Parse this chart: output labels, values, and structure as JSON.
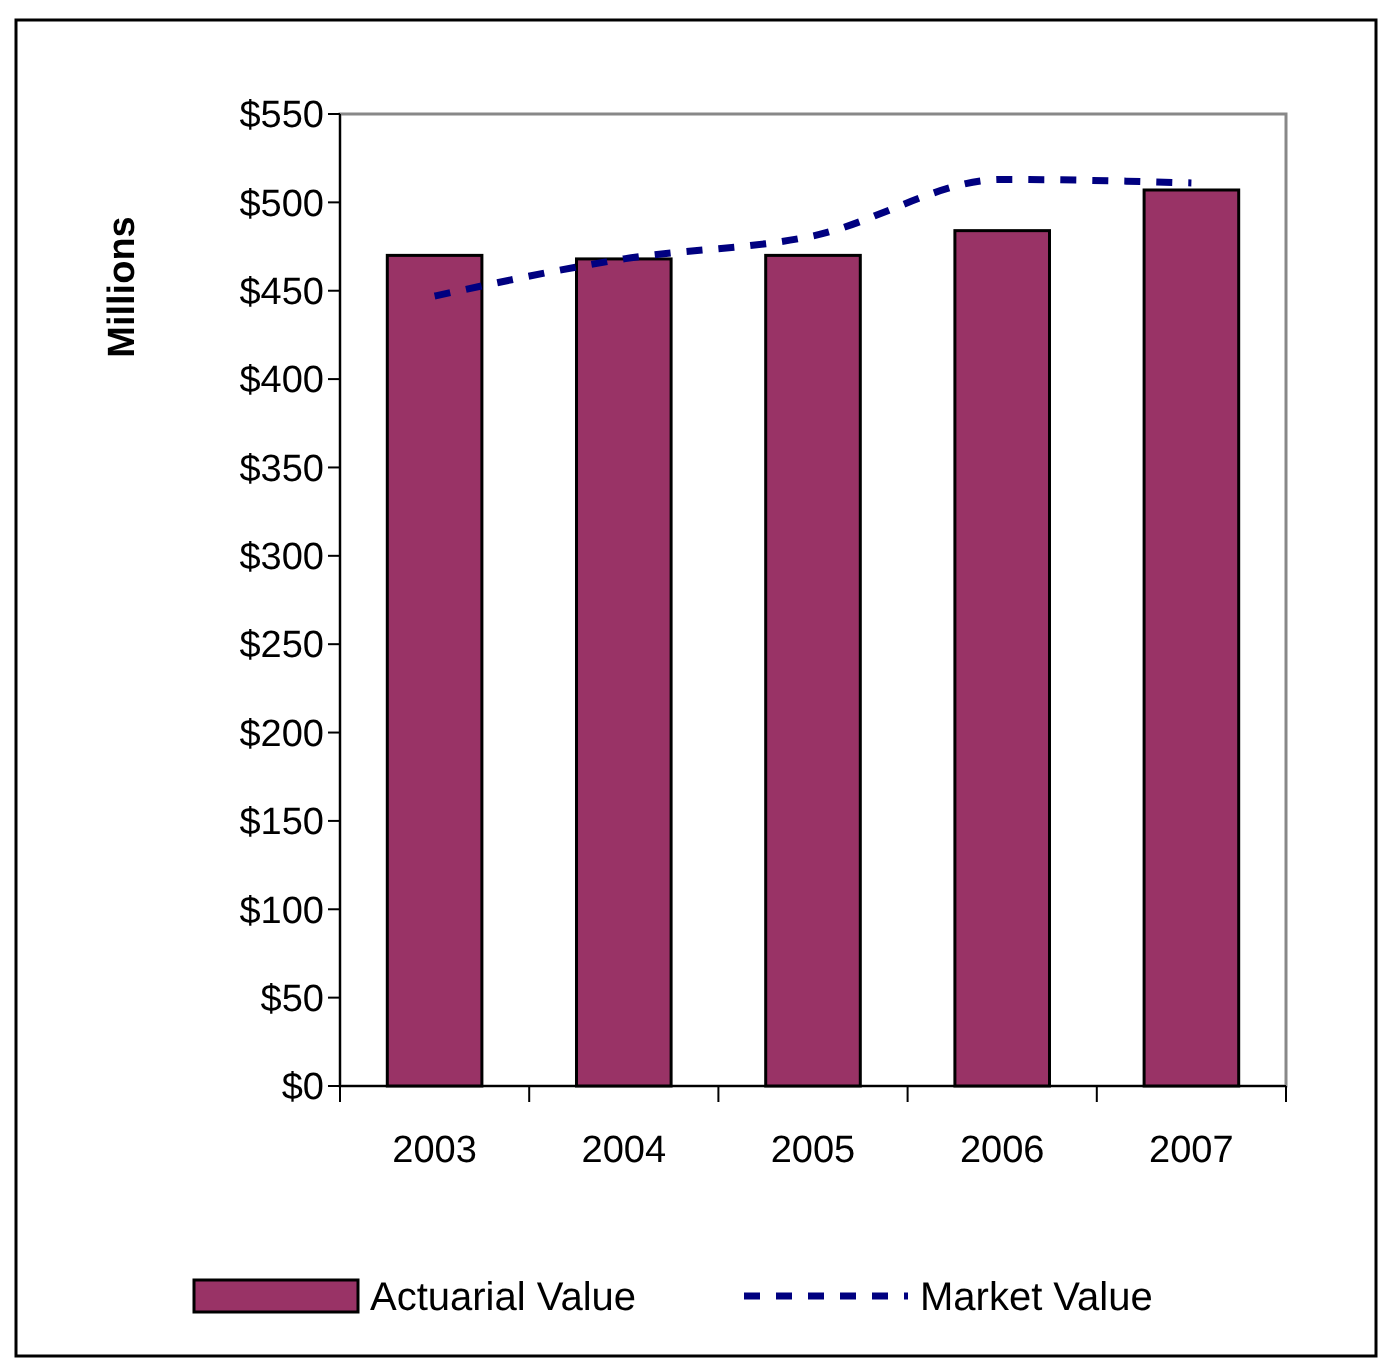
{
  "chart_data": {
    "type": "bar",
    "ylabel": "Millions",
    "categories": [
      "2003",
      "2004",
      "2005",
      "2006",
      "2007"
    ],
    "series": [
      {
        "name": "Actuarial Value",
        "color": "#993366",
        "values": [
          470,
          468,
          470,
          484,
          507
        ]
      },
      {
        "name": "Market Value",
        "type": "line",
        "color": "#000080",
        "line_style": "dashed",
        "values": [
          447,
          468,
          481,
          513,
          511
        ]
      }
    ],
    "ylim": [
      0,
      550
    ],
    "yticks": [
      {
        "value": 0,
        "label": "$0"
      },
      {
        "value": 50,
        "label": "$50"
      },
      {
        "value": 100,
        "label": "$100"
      },
      {
        "value": 150,
        "label": "$150"
      },
      {
        "value": 200,
        "label": "$200"
      },
      {
        "value": 250,
        "label": "$250"
      },
      {
        "value": 300,
        "label": "$300"
      },
      {
        "value": 350,
        "label": "$350"
      },
      {
        "value": 400,
        "label": "$400"
      },
      {
        "value": 450,
        "label": "$450"
      },
      {
        "value": 500,
        "label": "$500"
      },
      {
        "value": 550,
        "label": "$550"
      }
    ],
    "grid": false,
    "legend": "bottom"
  }
}
